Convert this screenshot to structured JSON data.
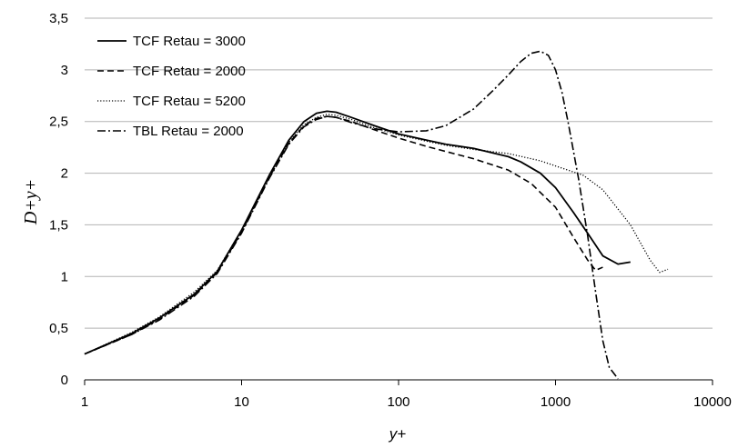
{
  "chart_data": {
    "type": "line",
    "title": "",
    "xlabel": "y+",
    "ylabel": "D+y+",
    "xscale": "log",
    "xlim": [
      1,
      10000
    ],
    "ylim": [
      0,
      3.5
    ],
    "x_ticks": [
      1,
      10,
      100,
      1000,
      10000
    ],
    "x_tick_labels": [
      "1",
      "10",
      "100",
      "1000",
      "10000"
    ],
    "y_ticks": [
      0,
      0.5,
      1,
      1.5,
      2,
      2.5,
      3,
      3.5
    ],
    "y_tick_labels": [
      "0",
      "0,5",
      "1",
      "1,5",
      "2",
      "2,5",
      "3",
      "3,5"
    ],
    "grid": "horizontal",
    "legend_position": "top-left",
    "series": [
      {
        "name": "TCF Retau = 3000",
        "style": "solid",
        "x": [
          1,
          2,
          3,
          5,
          7,
          10,
          15,
          20,
          25,
          30,
          35,
          40,
          50,
          70,
          100,
          150,
          200,
          300,
          500,
          600,
          800,
          1000,
          1300,
          1600,
          2000,
          2500,
          3000
        ],
        "y": [
          0.25,
          0.45,
          0.6,
          0.83,
          1.05,
          1.45,
          1.98,
          2.32,
          2.5,
          2.58,
          2.6,
          2.59,
          2.54,
          2.46,
          2.38,
          2.32,
          2.28,
          2.24,
          2.16,
          2.11,
          2.0,
          1.86,
          1.62,
          1.42,
          1.2,
          1.12,
          1.14
        ]
      },
      {
        "name": "TCF Retau = 2000",
        "style": "dashed",
        "x": [
          1,
          2,
          3,
          5,
          7,
          10,
          15,
          20,
          25,
          30,
          35,
          40,
          50,
          70,
          100,
          150,
          200,
          300,
          500,
          700,
          1000,
          1300,
          1600,
          1800,
          2000
        ],
        "y": [
          0.25,
          0.44,
          0.59,
          0.82,
          1.04,
          1.43,
          1.96,
          2.29,
          2.46,
          2.53,
          2.55,
          2.54,
          2.5,
          2.42,
          2.34,
          2.26,
          2.21,
          2.14,
          2.03,
          1.9,
          1.67,
          1.38,
          1.16,
          1.06,
          1.09
        ]
      },
      {
        "name": "TCF Retau = 5200",
        "style": "dotted",
        "x": [
          1,
          2,
          3,
          5,
          7,
          10,
          15,
          20,
          25,
          30,
          35,
          40,
          50,
          70,
          100,
          150,
          200,
          300,
          500,
          800,
          1000,
          1500,
          2000,
          3000,
          4000,
          4600,
          5200
        ],
        "y": [
          0.25,
          0.46,
          0.61,
          0.85,
          1.06,
          1.45,
          1.98,
          2.3,
          2.47,
          2.54,
          2.57,
          2.56,
          2.52,
          2.44,
          2.37,
          2.31,
          2.27,
          2.23,
          2.19,
          2.12,
          2.07,
          1.98,
          1.84,
          1.5,
          1.16,
          1.04,
          1.07
        ]
      },
      {
        "name": "TBL Retau = 2000",
        "style": "dashdot",
        "x": [
          1,
          2,
          3,
          5,
          7,
          10,
          15,
          20,
          25,
          30,
          35,
          40,
          50,
          70,
          100,
          150,
          200,
          300,
          400,
          500,
          600,
          700,
          800,
          900,
          1000,
          1100,
          1200,
          1400,
          1600,
          1800,
          2000,
          2200,
          2500
        ],
        "y": [
          0.25,
          0.44,
          0.58,
          0.81,
          1.03,
          1.42,
          1.95,
          2.28,
          2.45,
          2.52,
          2.55,
          2.54,
          2.49,
          2.43,
          2.4,
          2.41,
          2.46,
          2.62,
          2.8,
          2.95,
          3.08,
          3.16,
          3.18,
          3.14,
          3.0,
          2.78,
          2.5,
          1.95,
          1.4,
          0.85,
          0.38,
          0.12,
          0.01
        ]
      }
    ]
  }
}
